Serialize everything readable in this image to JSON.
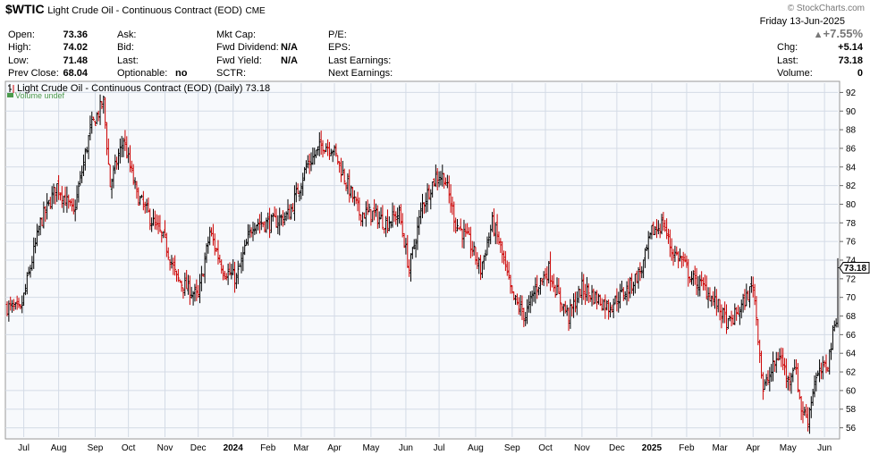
{
  "header": {
    "symbol": "$WTIC",
    "name": "Light Crude Oil - Continuous Contract (EOD)",
    "exchange": "CME",
    "brand": "© StockCharts.com",
    "date": "Friday  13-Jun-2025",
    "pct_change": "+7.55%",
    "up_color": "#777777",
    "col1": [
      {
        "label": "Open:",
        "value": "73.36"
      },
      {
        "label": "High:",
        "value": "74.02"
      },
      {
        "label": "Low:",
        "value": "71.48"
      },
      {
        "label": "Prev Close:",
        "value": "68.04"
      }
    ],
    "col2": [
      {
        "label": "Ask:",
        "value": ""
      },
      {
        "label": "Bid:",
        "value": ""
      },
      {
        "label": "Last:",
        "value": ""
      },
      {
        "label": "Optionable:",
        "value": "no"
      }
    ],
    "col3": [
      {
        "label": "Mkt Cap:",
        "value": ""
      },
      {
        "label": "Fwd Dividend:",
        "value": "N/A"
      },
      {
        "label": "Fwd Yield:",
        "value": "N/A"
      },
      {
        "label": "SCTR:",
        "value": ""
      }
    ],
    "col4": [
      {
        "label": "P/E:",
        "value": ""
      },
      {
        "label": "EPS:",
        "value": ""
      },
      {
        "label": "Last Earnings:",
        "value": ""
      },
      {
        "label": "Next Earnings:",
        "value": ""
      }
    ],
    "col5": [
      {
        "label": "Chg:",
        "value": "+5.14"
      },
      {
        "label": "Last:",
        "value": "73.18"
      },
      {
        "label": "Volume:",
        "value": "0"
      }
    ]
  },
  "chart_data": {
    "type": "ohlc",
    "title": "Light Crude Oil - Continuous Contract (EOD) (Daily) 73.18",
    "legend_volume": "Volume undef",
    "last_price_label": "73.18",
    "last_price": 73.18,
    "ylim": [
      55,
      93
    ],
    "yticks": [
      56,
      58,
      60,
      62,
      64,
      66,
      68,
      70,
      72,
      74,
      76,
      78,
      80,
      82,
      84,
      86,
      88,
      90,
      92
    ],
    "x_labels": [
      {
        "label": "Jul",
        "t": 10,
        "bold": false
      },
      {
        "label": "Aug",
        "t": 31,
        "bold": false
      },
      {
        "label": "Sep",
        "t": 53,
        "bold": false
      },
      {
        "label": "Oct",
        "t": 73,
        "bold": false
      },
      {
        "label": "Nov",
        "t": 95,
        "bold": false
      },
      {
        "label": "Dec",
        "t": 115,
        "bold": false
      },
      {
        "label": "2024",
        "t": 136,
        "bold": true
      },
      {
        "label": "Feb",
        "t": 157,
        "bold": false
      },
      {
        "label": "Mar",
        "t": 177,
        "bold": false
      },
      {
        "label": "Apr",
        "t": 197,
        "bold": false
      },
      {
        "label": "May",
        "t": 219,
        "bold": false
      },
      {
        "label": "Jun",
        "t": 240,
        "bold": false
      },
      {
        "label": "Jul",
        "t": 260,
        "bold": false
      },
      {
        "label": "Aug",
        "t": 282,
        "bold": false
      },
      {
        "label": "Sep",
        "t": 304,
        "bold": false
      },
      {
        "label": "Oct",
        "t": 324,
        "bold": false
      },
      {
        "label": "Nov",
        "t": 346,
        "bold": false
      },
      {
        "label": "Dec",
        "t": 367,
        "bold": false
      },
      {
        "label": "2025",
        "t": 388,
        "bold": true
      },
      {
        "label": "Feb",
        "t": 409,
        "bold": false
      },
      {
        "label": "Mar",
        "t": 429,
        "bold": false
      },
      {
        "label": "Apr",
        "t": 449,
        "bold": false
      },
      {
        "label": "May",
        "t": 470,
        "bold": false
      },
      {
        "label": "Jun",
        "t": 492,
        "bold": false
      }
    ],
    "t_range": [
      0,
      500
    ],
    "close_anchors": [
      [
        0,
        69
      ],
      [
        8,
        68.5
      ],
      [
        20,
        78
      ],
      [
        30,
        82
      ],
      [
        40,
        79
      ],
      [
        50,
        88
      ],
      [
        58,
        91
      ],
      [
        62,
        82
      ],
      [
        70,
        87
      ],
      [
        78,
        81
      ],
      [
        88,
        78
      ],
      [
        95,
        76
      ],
      [
        102,
        72
      ],
      [
        115,
        70
      ],
      [
        122,
        77
      ],
      [
        130,
        73
      ],
      [
        138,
        72
      ],
      [
        148,
        78
      ],
      [
        160,
        78
      ],
      [
        170,
        79
      ],
      [
        180,
        84
      ],
      [
        190,
        86.5
      ],
      [
        196,
        86
      ],
      [
        205,
        82
      ],
      [
        212,
        79
      ],
      [
        220,
        79
      ],
      [
        228,
        78
      ],
      [
        236,
        79
      ],
      [
        242,
        73
      ],
      [
        250,
        80
      ],
      [
        258,
        83
      ],
      [
        263,
        83
      ],
      [
        270,
        78
      ],
      [
        278,
        76
      ],
      [
        285,
        73
      ],
      [
        292,
        78
      ],
      [
        296,
        76
      ],
      [
        304,
        70
      ],
      [
        312,
        68
      ],
      [
        318,
        71
      ],
      [
        326,
        73
      ],
      [
        332,
        70
      ],
      [
        338,
        68
      ],
      [
        346,
        71
      ],
      [
        354,
        70
      ],
      [
        362,
        69
      ],
      [
        368,
        70
      ],
      [
        374,
        71
      ],
      [
        382,
        73
      ],
      [
        388,
        77
      ],
      [
        395,
        78
      ],
      [
        400,
        75
      ],
      [
        406,
        74
      ],
      [
        412,
        72
      ],
      [
        420,
        71
      ],
      [
        428,
        69
      ],
      [
        434,
        67
      ],
      [
        442,
        69
      ],
      [
        448,
        71
      ],
      [
        449,
        71.5
      ],
      [
        452,
        66
      ],
      [
        455,
        60
      ],
      [
        460,
        62
      ],
      [
        465,
        64
      ],
      [
        470,
        61
      ],
      [
        474,
        63
      ],
      [
        478,
        58
      ],
      [
        482,
        57
      ],
      [
        486,
        61
      ],
      [
        490,
        62
      ],
      [
        494,
        63
      ],
      [
        497,
        66
      ],
      [
        499,
        68
      ],
      [
        500,
        73.2
      ]
    ],
    "seed": 7
  }
}
